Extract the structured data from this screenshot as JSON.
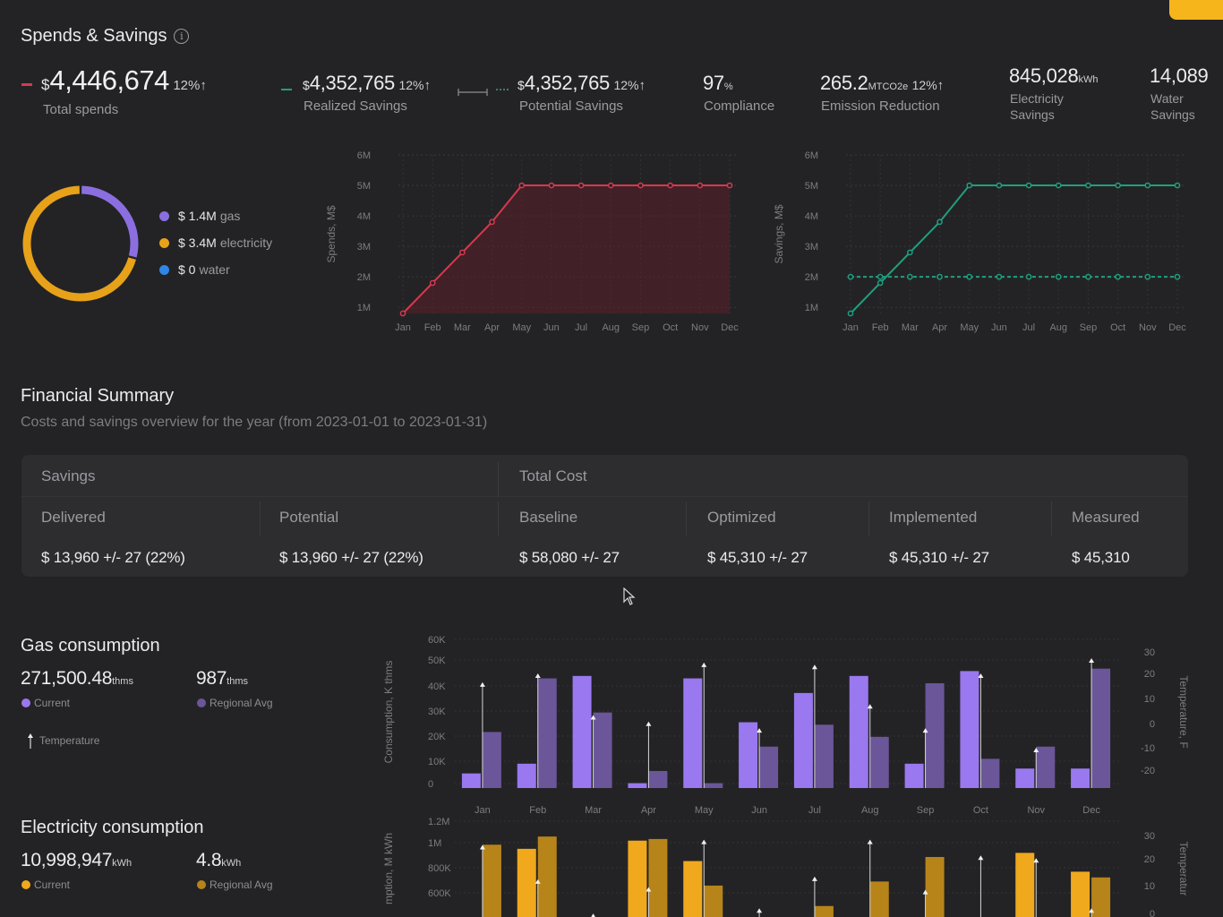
{
  "header": {
    "title": "Spends & Savings",
    "info_icon": "info-icon"
  },
  "kpis": {
    "total": {
      "currency": "$",
      "value": "4,446,674",
      "pct": "12%",
      "arrow": "↑",
      "label": "Total spends"
    },
    "realized": {
      "currency": "$",
      "value": "4,352,765",
      "pct": "12%",
      "arrow": "↑",
      "label": "Realized Savings"
    },
    "potential": {
      "currency": "$",
      "value": "4,352,765",
      "pct": "12%",
      "arrow": "↑",
      "label": "Potential Savings"
    },
    "compliance": {
      "value": "97",
      "unit": "%",
      "label": "Compliance"
    },
    "emission": {
      "value": "265.2",
      "unit": "MTCO2e",
      "pct": "12%",
      "arrow": "↑",
      "label": "Emission Reduction"
    },
    "electricity": {
      "value": "845,028",
      "unit": "kWh",
      "label_1": "Electricity",
      "label_2": "Savings"
    },
    "water": {
      "value": "14,089",
      "label_1": "Water",
      "label_2": "Savings"
    }
  },
  "donut_legend": [
    {
      "amount": "$ 1.4M",
      "name": "gas",
      "color": "#8b6fe0"
    },
    {
      "amount": "$ 3.4M",
      "name": "electricity",
      "color": "#e7a21a"
    },
    {
      "amount": "$ 0",
      "name": "water",
      "color": "#2f86e6"
    }
  ],
  "financial": {
    "title": "Financial Summary",
    "subtitle": "Costs and savings overview for the year (from 2023-01-01 to 2023-01-31)",
    "groups": {
      "savings": "Savings",
      "total_cost": "Total Cost"
    },
    "columns": [
      "Delivered",
      "Potential",
      "Baseline",
      "Optimized",
      "Implemented",
      "Measured"
    ],
    "values": [
      "$ 13,960 +/- 27 (22%)",
      "$ 13,960 +/- 27 (22%)",
      "$ 58,080 +/- 27",
      "$ 45,310 +/- 27",
      "$ 45,310 +/- 27",
      "$ 45,310"
    ]
  },
  "gas": {
    "title": "Gas consumption",
    "current_value": "271,500.48",
    "current_unit": "thms",
    "current_label": "Current",
    "regional_value": "987",
    "regional_unit": "thms",
    "regional_label": "Regional Avg",
    "temp_label": "Temperature"
  },
  "electricity": {
    "title": "Electricity consumption",
    "current_value": "10,998,947",
    "current_unit": "kWh",
    "current_label": "Current",
    "regional_value": "4.8",
    "regional_unit": "kWh",
    "regional_label": "Regional Avg"
  },
  "colors": {
    "accent": "#f5b51b",
    "gas_current": "#9a78ef",
    "gas_regional": "#6b5699",
    "elec_current": "#f0a91c",
    "elec_regional": "#b7841a",
    "spend_line": "#d8384f",
    "savings_line": "#1f9f7f"
  },
  "chart_data": [
    {
      "type": "pie",
      "categories": [
        "gas",
        "electricity",
        "water"
      ],
      "values": [
        1.4,
        3.4,
        0
      ],
      "colors": [
        "#8b6fe0",
        "#e7a21a",
        "#2f86e6"
      ]
    },
    {
      "type": "area",
      "x": [
        "Jan",
        "Feb",
        "Mar",
        "Apr",
        "May",
        "Jun",
        "Jul",
        "Aug",
        "Sep",
        "Oct",
        "Nov",
        "Dec"
      ],
      "ylabel": "Spends, M$",
      "yticks": [
        "1M",
        "2M",
        "3M",
        "4M",
        "5M",
        "6M"
      ],
      "ylim": [
        1,
        6
      ],
      "series": [
        {
          "values": [
            0.8,
            1.8,
            2.8,
            3.8,
            5,
            5,
            5,
            5,
            5,
            5,
            5,
            5
          ]
        }
      ],
      "grid": true
    },
    {
      "type": "line",
      "x": [
        "Jan",
        "Feb",
        "Mar",
        "Apr",
        "May",
        "Jun",
        "Jul",
        "Aug",
        "Sep",
        "Oct",
        "Nov",
        "Dec"
      ],
      "ylabel": "Savings, M$",
      "yticks": [
        "1M",
        "2M",
        "3M",
        "4M",
        "5M",
        "6M"
      ],
      "ylim": [
        1,
        6
      ],
      "series": [
        {
          "values": [
            0.8,
            1.8,
            2.8,
            3.8,
            5,
            5,
            5,
            5,
            5,
            5,
            5,
            5
          ]
        },
        {
          "values": [
            2,
            2,
            2,
            2,
            2,
            2,
            2,
            2,
            2,
            2,
            2,
            2
          ],
          "style": "dashed"
        }
      ],
      "grid": true
    },
    {
      "type": "bar",
      "categories": [
        "Jan",
        "Feb",
        "Mar",
        "Apr",
        "May",
        "Jun",
        "Jul",
        "Aug",
        "Sep",
        "Oct",
        "Nov",
        "Dec"
      ],
      "ylabel": "Consumption, K thms",
      "y2label": "Temperature, F",
      "yticks": [
        "0",
        "10K",
        "20K",
        "30K",
        "40K",
        "50K",
        "60K"
      ],
      "y2ticks": [
        "-20",
        "-10",
        "0",
        "10",
        "20",
        "30"
      ],
      "ylim": [
        0,
        60
      ],
      "y2lim": [
        -25,
        30
      ],
      "series": [
        {
          "name": "Current",
          "values": [
            6,
            10,
            46,
            2,
            45,
            27,
            39,
            46,
            10,
            48,
            8,
            8
          ]
        },
        {
          "name": "Regional Avg",
          "values": [
            23,
            45,
            31,
            7,
            2,
            17,
            26,
            21,
            43,
            12,
            17,
            49
          ]
        },
        {
          "name": "Temperature",
          "values": [
            18,
            22,
            3,
            0,
            27,
            -3,
            26,
            8,
            -3,
            22,
            -12,
            29
          ]
        }
      ]
    },
    {
      "type": "bar",
      "categories": [
        "Jan",
        "Feb",
        "Mar",
        "Apr",
        "May",
        "Jun",
        "Jul",
        "Aug",
        "Sep",
        "Oct",
        "Nov",
        "Dec"
      ],
      "ylabel": "mption, M kWh",
      "y2label": "Temperatur",
      "yticks": [
        "600K",
        "800K",
        "1M",
        "1.2M"
      ],
      "y2ticks": [
        "0",
        "10",
        "20",
        "30"
      ],
      "series": [
        {
          "name": "Current",
          "values": [
            0,
            0.9,
            0,
            1.0,
            0.75,
            0,
            0,
            0,
            0,
            0,
            0.85,
            0.62
          ]
        },
        {
          "name": "Regional Avg",
          "values": [
            0.95,
            1.05,
            0,
            1.02,
            0.45,
            0,
            0.2,
            0.5,
            0.8,
            0,
            0,
            0.55
          ]
        },
        {
          "name": "Temperature",
          "values": [
            24,
            11,
            -2,
            8,
            26,
            0,
            12,
            26,
            7,
            20,
            19,
            0
          ]
        }
      ]
    }
  ]
}
